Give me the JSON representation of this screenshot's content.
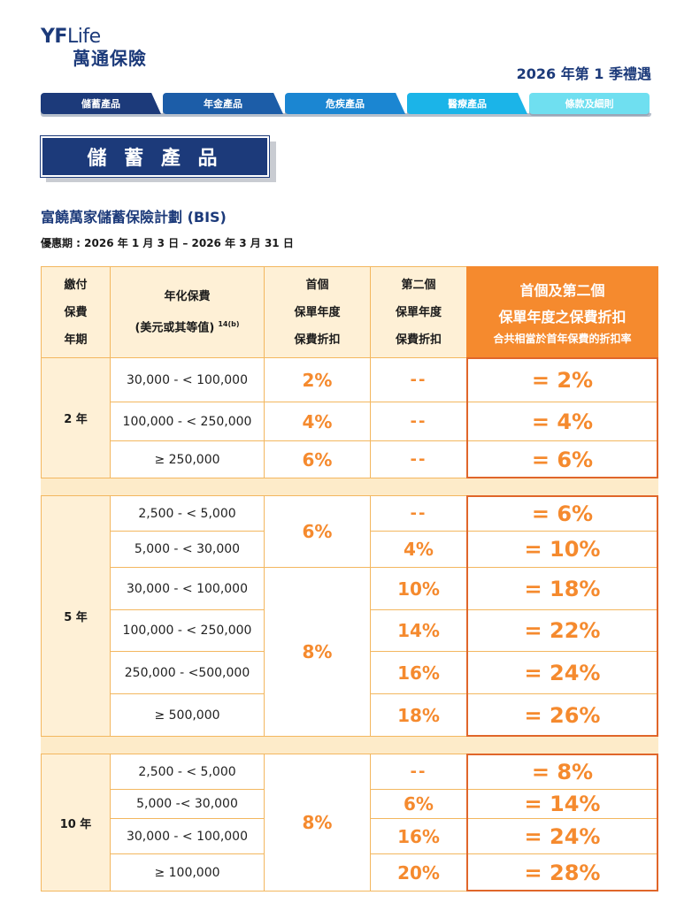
{
  "logo": {
    "brand_a": "YF",
    "brand_b": "Life",
    "chinese": "萬通保險"
  },
  "quarter_title": "2026 年第 1 季禮遇",
  "tabs": [
    {
      "label": "儲蓄產品"
    },
    {
      "label": "年金產品"
    },
    {
      "label": "危疾產品"
    },
    {
      "label": "醫療產品"
    },
    {
      "label": "條款及細則"
    }
  ],
  "section_title": "儲 蓄 產 品",
  "plan_title": "富饒萬家儲蓄保險計劃 (BIS)",
  "offer_period": "優惠期 : 2026 年 1 月 3 日 – 2026 年 3 月 31 日",
  "table": {
    "headers": {
      "term": [
        "繳付",
        "保費",
        "年期"
      ],
      "premium": [
        "年化保費",
        "(美元或其等值)"
      ],
      "premium_note": "14(b)",
      "first": [
        "首個",
        "保單年度",
        "保費折扣"
      ],
      "second": [
        "第二個",
        "保單年度",
        "保費折扣"
      ],
      "total_1": "首個及第二個",
      "total_2": "保單年度之保費折扣",
      "total_3": "合共相當於首年保費的折扣率"
    },
    "groups": [
      {
        "term": "2 年",
        "rows": [
          {
            "range": "30,000 - < 100,000",
            "first": "2%",
            "second": "--",
            "total": "= 2%"
          },
          {
            "range": "100,000 - < 250,000",
            "first": "4%",
            "second": "--",
            "total": "= 4%"
          },
          {
            "range": "≥ 250,000",
            "first": "6%",
            "second": "--",
            "total": "= 6%"
          }
        ]
      },
      {
        "term": "5 年",
        "first_merged": [
          "6%",
          "8%"
        ],
        "rows": [
          {
            "range": "2,500 - < 5,000",
            "second": "--",
            "total": "= 6%"
          },
          {
            "range": "5,000 - < 30,000",
            "second": "4%",
            "total": "= 10%"
          },
          {
            "range": "30,000 - < 100,000",
            "second": "10%",
            "total": "= 18%"
          },
          {
            "range": "100,000 - < 250,000",
            "second": "14%",
            "total": "= 22%"
          },
          {
            "range": "250,000 - <500,000",
            "second": "16%",
            "total": "= 24%"
          },
          {
            "range": "≥ 500,000",
            "second": "18%",
            "total": "= 26%"
          }
        ]
      },
      {
        "term": "10 年",
        "first_merged": "8%",
        "rows": [
          {
            "range": "2,500 - < 5,000",
            "second": "--",
            "total": "= 8%"
          },
          {
            "range": "5,000 -< 30,000",
            "second": "6%",
            "total": "= 14%"
          },
          {
            "range": "30,000 - < 100,000",
            "second": "16%",
            "total": "= 24%"
          },
          {
            "range": "≥ 100,000",
            "second": "20%",
            "total": "= 28%"
          }
        ]
      }
    ]
  }
}
